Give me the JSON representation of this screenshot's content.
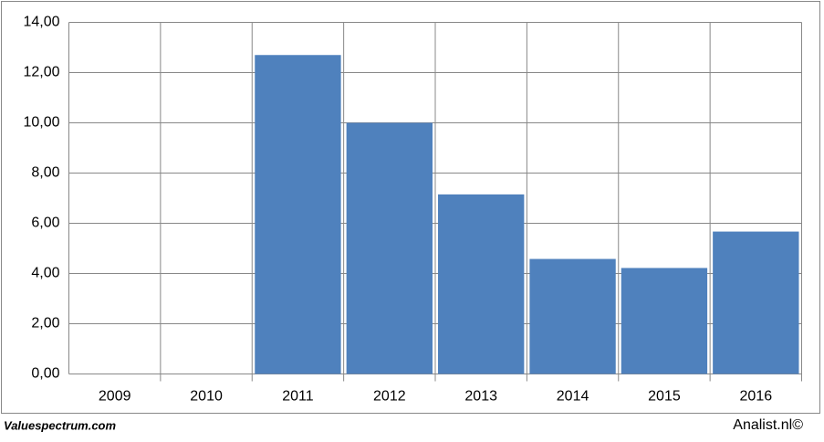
{
  "chart_data": {
    "type": "bar",
    "categories": [
      "2009",
      "2010",
      "2011",
      "2012",
      "2013",
      "2014",
      "2015",
      "2016"
    ],
    "values": [
      null,
      null,
      12.7,
      10.0,
      7.15,
      4.58,
      4.22,
      5.67
    ],
    "color": "#4f81bd",
    "ylim": [
      0,
      14
    ],
    "yticks": [
      {
        "value": 0,
        "label": "0,00"
      },
      {
        "value": 2,
        "label": "2,00"
      },
      {
        "value": 4,
        "label": "4,00"
      },
      {
        "value": 6,
        "label": "6,00"
      },
      {
        "value": 8,
        "label": "8,00"
      },
      {
        "value": 10,
        "label": "10,00"
      },
      {
        "value": 12,
        "label": "12,00"
      },
      {
        "value": 14,
        "label": "14,00"
      }
    ],
    "grid": true,
    "footer_left": "Valuespectrum.com",
    "footer_right": "Analist.nl©"
  }
}
